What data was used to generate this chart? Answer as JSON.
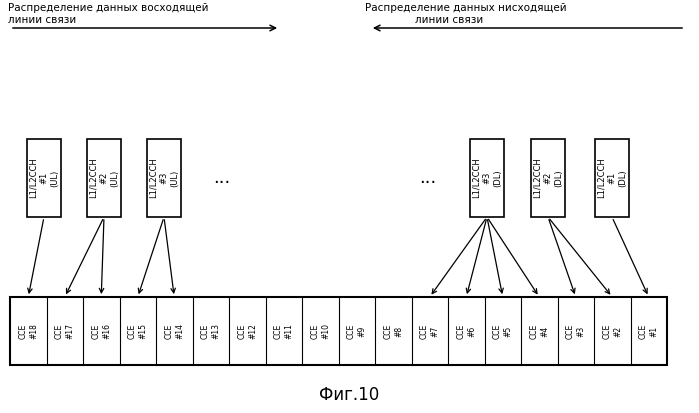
{
  "title": "Фиг.10",
  "ul_label_line1": "Распределение данных восходящей",
  "ul_label_line2": "линии связи",
  "dl_label_line1": "Распределение данных нисходящей",
  "dl_label_line2": "линии связи",
  "ul_channels": [
    "L1/L2CCH\n#1\n(UL)",
    "L1/L2CCH\n#2\n(UL)",
    "L1/L2CCH\n#3\n(UL)"
  ],
  "dl_channels": [
    "L1/L2CCH\n#3\n(DL)",
    "L1/L2CCH\n#2\n(DL)",
    "L1/L2CCH\n#1\n(DL)"
  ],
  "cce_labels": [
    "CCE\n#18",
    "CCE\n#17",
    "CCE\n#16",
    "CCE\n#15",
    "CCE\n#14",
    "CCE\n#13",
    "CCE\n#12",
    "CCE\n#11",
    "CCE\n#10",
    "CCE\n#9",
    "CCE\n#8",
    "CCE\n#7",
    "CCE\n#6",
    "CCE\n#5",
    "CCE\n#4",
    "CCE\n#3",
    "CCE\n#2",
    "CCE\n#1"
  ],
  "bg_color": "#ffffff",
  "text_color": "#000000",
  "figsize": [
    6.99,
    4.13
  ],
  "dpi": 100
}
